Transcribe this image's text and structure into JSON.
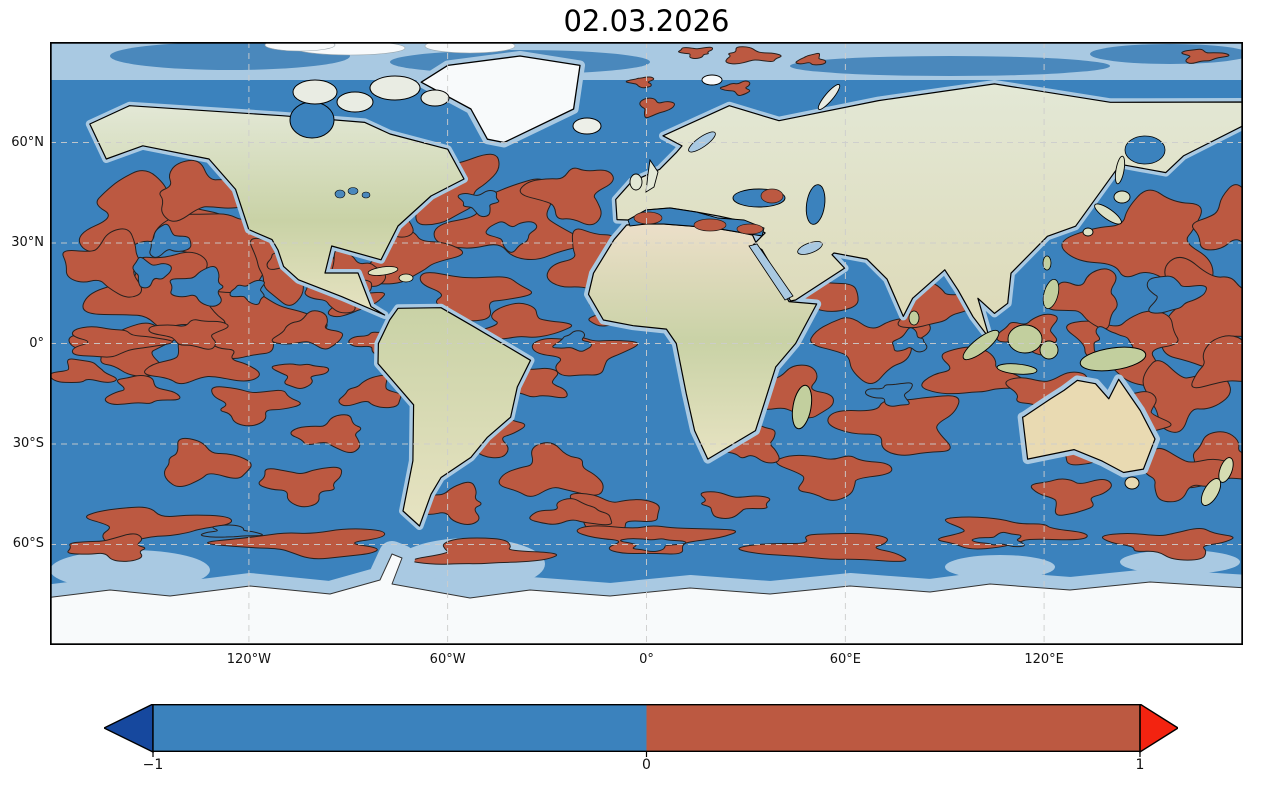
{
  "title": "02.03.2026",
  "axes": {
    "lat_ticks": [
      {
        "label": "60°N",
        "pct": 16.67
      },
      {
        "label": "30°N",
        "pct": 33.33
      },
      {
        "label": "0°",
        "pct": 50
      },
      {
        "label": "30°S",
        "pct": 66.67
      },
      {
        "label": "60°S",
        "pct": 83.33
      }
    ],
    "lon_ticks": [
      {
        "label": "120°W",
        "pct": 16.67
      },
      {
        "label": "60°W",
        "pct": 33.33
      },
      {
        "label": "0°",
        "pct": 50
      },
      {
        "label": "60°E",
        "pct": 66.67
      },
      {
        "label": "120°E",
        "pct": 83.33
      }
    ]
  },
  "colorbar": {
    "tick_labels": [
      "−1",
      "0",
      "1"
    ],
    "negative_color": "#3b82bd",
    "positive_color": "#bc5941",
    "under_arrow_color": "#16489e",
    "over_arrow_color": "#f32310",
    "outline_color": "#000000"
  },
  "palette": {
    "ocean_negative": "#3b82bd",
    "anomaly_positive": "#bc5941",
    "contour_line": "#27201e",
    "shallow_masked_blue": "#a9c9e2",
    "arctic_mid_blue": "#4a88bc",
    "ice_white": "#f8fafb",
    "ice_edge": "#333333",
    "coastline": "#000000",
    "gridline": "#cdcdcd",
    "map_border": "#000000",
    "land_pale": "#e3e8d6",
    "land_tan": "#e7e3c2",
    "land_green": "#c9d2a6",
    "sahara": "#ecdfc9",
    "australia_tan": "#e9dab2",
    "island_green": "#c2cf9e",
    "arctic_island": "#e9ece3"
  },
  "map_field": {
    "positive_blobs": [
      [
        95,
        175,
        60,
        36
      ],
      [
        178,
        205,
        62,
        40
      ],
      [
        112,
        252,
        60,
        36
      ],
      [
        205,
        282,
        52,
        32
      ],
      [
        78,
        306,
        44,
        24
      ],
      [
        152,
        322,
        48,
        20
      ],
      [
        240,
        226,
        38,
        28
      ],
      [
        58,
        222,
        38,
        28
      ],
      [
        150,
        150,
        45,
        24
      ],
      [
        235,
        165,
        35,
        22
      ],
      [
        260,
        290,
        30,
        16
      ],
      [
        300,
        258,
        26,
        14
      ],
      [
        330,
        300,
        24,
        12
      ],
      [
        90,
        350,
        30,
        14
      ],
      [
        250,
        332,
        22,
        12
      ],
      [
        1098,
        200,
        64,
        42
      ],
      [
        1162,
        272,
        56,
        46
      ],
      [
        1078,
        302,
        48,
        32
      ],
      [
        1186,
        182,
        38,
        28
      ],
      [
        1132,
        352,
        42,
        28
      ],
      [
        1038,
        256,
        34,
        24
      ],
      [
        1175,
        420,
        40,
        24
      ],
      [
        390,
        142,
        52,
        32
      ],
      [
        462,
        182,
        60,
        36
      ],
      [
        352,
        212,
        42,
        28
      ],
      [
        522,
        152,
        38,
        26
      ],
      [
        546,
        222,
        42,
        28
      ],
      [
        422,
        252,
        46,
        22
      ],
      [
        332,
        172,
        34,
        20
      ],
      [
        302,
        232,
        28,
        18
      ],
      [
        290,
        252,
        32,
        14
      ],
      [
        246,
        216,
        26,
        13
      ],
      [
        605,
        65,
        16,
        8
      ],
      [
        688,
        46,
        13,
        6
      ],
      [
        470,
        282,
        38,
        17
      ],
      [
        532,
        312,
        42,
        19
      ],
      [
        482,
        342,
        33,
        14
      ],
      [
        562,
        272,
        24,
        11
      ],
      [
        432,
        392,
        38,
        19
      ],
      [
        502,
        432,
        46,
        23
      ],
      [
        562,
        472,
        42,
        19
      ],
      [
        402,
        462,
        33,
        17
      ],
      [
        760,
        252,
        42,
        24
      ],
      [
        822,
        302,
        52,
        28
      ],
      [
        742,
        352,
        38,
        23
      ],
      [
        882,
        262,
        38,
        21
      ],
      [
        852,
        382,
        56,
        28
      ],
      [
        922,
        332,
        42,
        23
      ],
      [
        782,
        432,
        46,
        21
      ],
      [
        702,
        402,
        28,
        17
      ],
      [
        706,
        226,
        18,
        8
      ],
      [
        1002,
        352,
        38,
        21
      ],
      [
        1062,
        402,
        46,
        23
      ],
      [
        1132,
        432,
        42,
        21
      ],
      [
        982,
        292,
        28,
        17
      ],
      [
        1180,
        322,
        36,
        23
      ],
      [
        1022,
        452,
        33,
        17
      ],
      [
        1082,
        372,
        33,
        19
      ],
      [
        62,
        300,
        42,
        14
      ],
      [
        142,
        291,
        33,
        13
      ],
      [
        32,
        331,
        28,
        11
      ],
      [
        202,
        362,
        38,
        17
      ],
      [
        282,
        392,
        33,
        15
      ],
      [
        152,
        422,
        42,
        19
      ],
      [
        252,
        442,
        38,
        17
      ],
      [
        322,
        352,
        28,
        14
      ],
      [
        100,
        482,
        64,
        15
      ],
      [
        262,
        501,
        74,
        13
      ],
      [
        432,
        511,
        56,
        13
      ],
      [
        602,
        496,
        64,
        14
      ],
      [
        782,
        506,
        70,
        13
      ],
      [
        952,
        491,
        64,
        14
      ],
      [
        1122,
        501,
        56,
        13
      ],
      [
        522,
        472,
        38,
        11
      ],
      [
        682,
        462,
        33,
        11
      ],
      [
        62,
        506,
        38,
        11
      ]
    ],
    "arctic_positive_blobs": [
      [
        700,
        14,
        26,
        7
      ],
      [
        646,
        10,
        15,
        5
      ],
      [
        762,
        18,
        13,
        5
      ],
      [
        1152,
        14,
        20,
        6
      ],
      [
        592,
        40,
        11,
        5
      ]
    ],
    "negative_holes": [
      [
        150,
        245,
        26,
        16
      ],
      [
        118,
        200,
        20,
        13
      ],
      [
        462,
        192,
        22,
        13
      ],
      [
        524,
        300,
        16,
        9
      ],
      [
        1122,
        252,
        26,
        17
      ],
      [
        842,
        352,
        20,
        11
      ],
      [
        180,
        490,
        24,
        6
      ],
      [
        602,
        502,
        26,
        6
      ],
      [
        952,
        498,
        23,
        6
      ],
      [
        1060,
        300,
        18,
        12
      ],
      [
        430,
        160,
        18,
        11
      ],
      [
        860,
        300,
        16,
        10
      ],
      [
        100,
        230,
        18,
        12
      ],
      [
        200,
        250,
        16,
        10
      ]
    ]
  },
  "chart_data": {
    "type": "heatmap",
    "title": "02.03.2026",
    "projection": "equirectangular (plate carrée) world map, 180°W–180°E, 90°S–90°N",
    "field": "sign of ocean anomaly field (categorical two-level contour fill over ocean)",
    "levels": {
      "negative": {
        "value_range": [
          -1,
          0
        ],
        "color": "#3b82bd"
      },
      "positive": {
        "value_range": [
          0,
          1
        ],
        "color": "#bc5941"
      }
    },
    "colorbar": {
      "orientation": "horizontal",
      "ticks": [
        -1,
        0,
        1
      ],
      "range": [
        -1,
        1
      ],
      "extend": "both",
      "under_color": "#16489e",
      "over_color": "#f32310"
    },
    "x_axis": {
      "tick_labels": [
        "120°W",
        "60°W",
        "0°",
        "60°E",
        "120°E"
      ],
      "gridlines": "dashed"
    },
    "y_axis": {
      "tick_labels": [
        "60°N",
        "30°N",
        "0°",
        "30°S",
        "60°S"
      ],
      "gridlines": "dashed"
    },
    "positive_region_summary": [
      "large positive (red) patches across North Pacific 20–55°N",
      "northwest Pacific around Japan and east of it",
      "subpolar and central North Atlantic, Gulf of Mexico, Caribbean",
      "western Mediterranean, eastern Mediterranean, eastern Black Sea",
      "Arabian Sea and wide Indian Ocean belt 0–45°S",
      "scattered tropical/South Pacific and South Atlantic patches",
      "quasi-continuous circumpolar red band near 55–65°S",
      "small red patches along Siberian Arctic coast"
    ],
    "negative_region_summary": [
      "blue (negative) dominates equatorial central/eastern Pacific, Arctic basin margins, seas around Antarctica"
    ]
  }
}
